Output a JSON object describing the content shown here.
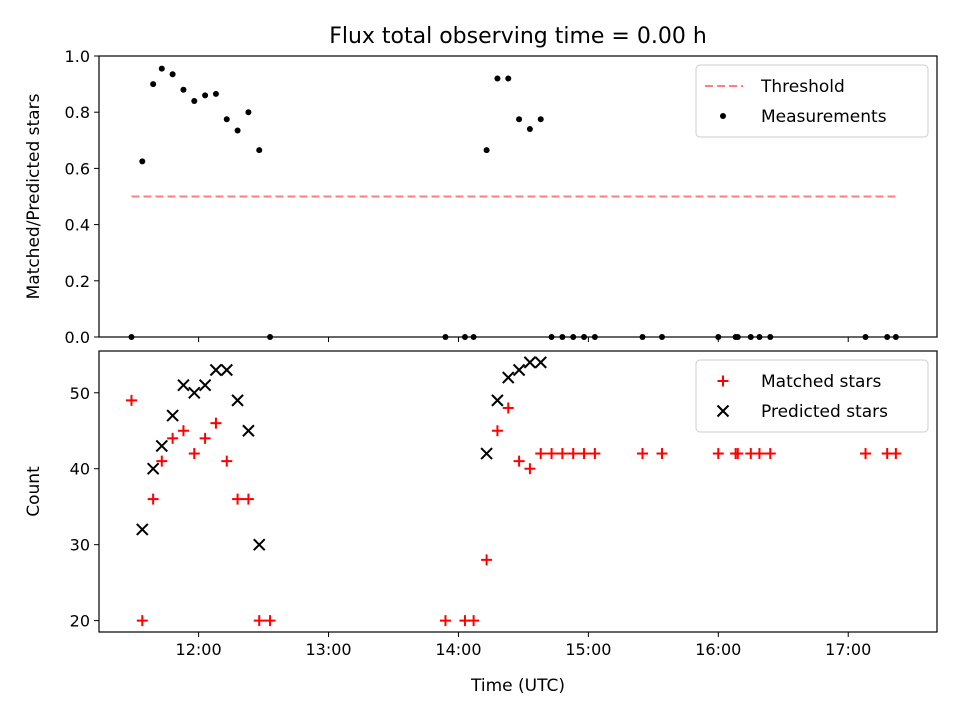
{
  "figure": {
    "title": "Flux total observing time = 0.00 h"
  },
  "chart_data": [
    {
      "type": "scatter",
      "ylabel": "Matched/Predicted stars",
      "xlabel": "",
      "xlim": [
        "11:14",
        "17:41"
      ],
      "ylim": [
        0,
        1.0
      ],
      "yticks": [
        "0.0",
        "0.2",
        "0.4",
        "0.6",
        "0.8",
        "1.0"
      ],
      "xticks": [
        "12:00",
        "13:00",
        "14:00",
        "15:00",
        "16:00",
        "17:00"
      ],
      "show_xtick_labels": false,
      "grid": false,
      "legend": "top-right",
      "threshold": {
        "name": "Threshold",
        "value": 0.5,
        "x_start": "11:29",
        "x_end": "17:22",
        "color": "#ff7f7f"
      },
      "series": [
        {
          "name": "Measurements",
          "marker": "dot",
          "color": "#000000",
          "points": [
            [
              "11:29",
              0.0
            ],
            [
              "11:34",
              0.625
            ],
            [
              "11:39",
              0.9
            ],
            [
              "11:43",
              0.955
            ],
            [
              "11:48",
              0.935
            ],
            [
              "11:53",
              0.88
            ],
            [
              "11:58",
              0.84
            ],
            [
              "12:03",
              0.86
            ],
            [
              "12:08",
              0.865
            ],
            [
              "12:13",
              0.775
            ],
            [
              "12:18",
              0.735
            ],
            [
              "12:23",
              0.8
            ],
            [
              "12:28",
              0.665
            ],
            [
              "12:33",
              0.0
            ],
            [
              "13:54",
              0.0
            ],
            [
              "14:03",
              0.0
            ],
            [
              "14:07",
              0.0
            ],
            [
              "14:13",
              0.665
            ],
            [
              "14:18",
              0.92
            ],
            [
              "14:23",
              0.92
            ],
            [
              "14:28",
              0.775
            ],
            [
              "14:33",
              0.74
            ],
            [
              "14:38",
              0.775
            ],
            [
              "14:43",
              0.0
            ],
            [
              "14:48",
              0.0
            ],
            [
              "14:53",
              0.0
            ],
            [
              "14:58",
              0.0
            ],
            [
              "15:03",
              0.0
            ],
            [
              "15:25",
              0.0
            ],
            [
              "15:34",
              0.0
            ],
            [
              "16:00",
              0.0
            ],
            [
              "16:08",
              0.0
            ],
            [
              "16:09",
              0.0
            ],
            [
              "16:15",
              0.0
            ],
            [
              "16:19",
              0.0
            ],
            [
              "16:24",
              0.0
            ],
            [
              "17:08",
              0.0
            ],
            [
              "17:18",
              0.0
            ],
            [
              "17:22",
              0.0
            ]
          ]
        }
      ]
    },
    {
      "type": "scatter",
      "ylabel": "Count",
      "xlabel": "Time (UTC)",
      "xlim": [
        "11:14",
        "17:41"
      ],
      "ylim": [
        18.5,
        55.5
      ],
      "yticks": [
        "20",
        "30",
        "40",
        "50"
      ],
      "xticks": [
        "12:00",
        "13:00",
        "14:00",
        "15:00",
        "16:00",
        "17:00"
      ],
      "show_xtick_labels": true,
      "grid": false,
      "legend": "top-right",
      "series": [
        {
          "name": "Matched stars",
          "marker": "plus",
          "color": "#ff0000",
          "points": [
            [
              "11:29",
              49
            ],
            [
              "11:34",
              20
            ],
            [
              "11:39",
              36
            ],
            [
              "11:43",
              41
            ],
            [
              "11:48",
              44
            ],
            [
              "11:53",
              45
            ],
            [
              "11:58",
              42
            ],
            [
              "12:03",
              44
            ],
            [
              "12:08",
              46
            ],
            [
              "12:13",
              41
            ],
            [
              "12:18",
              36
            ],
            [
              "12:23",
              36
            ],
            [
              "12:28",
              20
            ],
            [
              "12:33",
              20
            ],
            [
              "13:54",
              20
            ],
            [
              "14:03",
              20
            ],
            [
              "14:07",
              20
            ],
            [
              "14:13",
              28
            ],
            [
              "14:18",
              45
            ],
            [
              "14:23",
              48
            ],
            [
              "14:28",
              41
            ],
            [
              "14:33",
              40
            ],
            [
              "14:38",
              42
            ],
            [
              "14:43",
              42
            ],
            [
              "14:48",
              42
            ],
            [
              "14:53",
              42
            ],
            [
              "14:58",
              42
            ],
            [
              "15:03",
              42
            ],
            [
              "15:25",
              42
            ],
            [
              "15:34",
              42
            ],
            [
              "16:00",
              42
            ],
            [
              "16:08",
              42
            ],
            [
              "16:09",
              42
            ],
            [
              "16:15",
              42
            ],
            [
              "16:19",
              42
            ],
            [
              "16:24",
              42
            ],
            [
              "17:08",
              42
            ],
            [
              "17:18",
              42
            ],
            [
              "17:22",
              42
            ]
          ]
        },
        {
          "name": "Predicted stars",
          "marker": "x",
          "color": "#000000",
          "points": [
            [
              "11:34",
              32
            ],
            [
              "11:39",
              40
            ],
            [
              "11:43",
              43
            ],
            [
              "11:48",
              47
            ],
            [
              "11:53",
              51
            ],
            [
              "11:58",
              50
            ],
            [
              "12:03",
              51
            ],
            [
              "12:08",
              53
            ],
            [
              "12:13",
              53
            ],
            [
              "12:18",
              49
            ],
            [
              "12:23",
              45
            ],
            [
              "12:28",
              30
            ],
            [
              "14:13",
              42
            ],
            [
              "14:18",
              49
            ],
            [
              "14:23",
              52
            ],
            [
              "14:28",
              53
            ],
            [
              "14:33",
              54
            ],
            [
              "14:38",
              54
            ]
          ]
        }
      ]
    }
  ]
}
